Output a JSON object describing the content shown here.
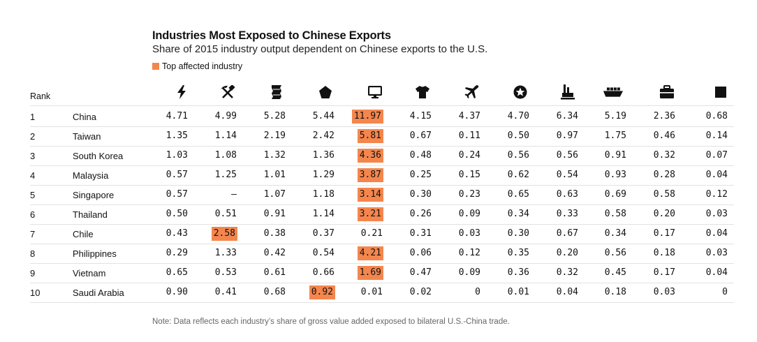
{
  "chart_data": {
    "type": "table",
    "title": "Industries Most Exposed to Chinese Exports",
    "subtitle": "Share of 2015 industry output dependent on Chinese exports to the U.S.",
    "legend": {
      "label": "Top affected industry",
      "color": "#F4864D"
    },
    "rank_header": "Rank",
    "note": "Note: Data reflects each industry’s share of gross value added exposed to bilateral U.S.-China trade.",
    "columns": [
      {
        "icon": "lightning-bolt-icon"
      },
      {
        "icon": "hammer-pickaxe-icon"
      },
      {
        "icon": "paper-roll-icon"
      },
      {
        "icon": "pentagon-icon"
      },
      {
        "icon": "computer-monitor-icon"
      },
      {
        "icon": "t-shirt-icon"
      },
      {
        "icon": "airplane-icon"
      },
      {
        "icon": "star-circle-icon"
      },
      {
        "icon": "factory-icon"
      },
      {
        "icon": "ship-icon"
      },
      {
        "icon": "briefcase-icon"
      },
      {
        "icon": "square-icon"
      }
    ],
    "rows": [
      {
        "rank": "1",
        "country": "China",
        "values": [
          "4.71",
          "4.99",
          "5.28",
          "5.44",
          "11.97",
          "4.15",
          "4.37",
          "4.70",
          "6.34",
          "5.19",
          "2.36",
          "0.68"
        ],
        "highlight": 4
      },
      {
        "rank": "2",
        "country": "Taiwan",
        "values": [
          "1.35",
          "1.14",
          "2.19",
          "2.42",
          "5.81",
          "0.67",
          "0.11",
          "0.50",
          "0.97",
          "1.75",
          "0.46",
          "0.14"
        ],
        "highlight": 4
      },
      {
        "rank": "3",
        "country": "South Korea",
        "values": [
          "1.03",
          "1.08",
          "1.32",
          "1.36",
          "4.36",
          "0.48",
          "0.24",
          "0.56",
          "0.56",
          "0.91",
          "0.32",
          "0.07"
        ],
        "highlight": 4
      },
      {
        "rank": "4",
        "country": "Malaysia",
        "values": [
          "0.57",
          "1.25",
          "1.01",
          "1.29",
          "3.87",
          "0.25",
          "0.15",
          "0.62",
          "0.54",
          "0.93",
          "0.28",
          "0.04"
        ],
        "highlight": 4
      },
      {
        "rank": "5",
        "country": "Singapore",
        "values": [
          "0.57",
          "–",
          "1.07",
          "1.18",
          "3.14",
          "0.30",
          "0.23",
          "0.65",
          "0.63",
          "0.69",
          "0.58",
          "0.12"
        ],
        "highlight": 4
      },
      {
        "rank": "6",
        "country": "Thailand",
        "values": [
          "0.50",
          "0.51",
          "0.91",
          "1.14",
          "3.21",
          "0.26",
          "0.09",
          "0.34",
          "0.33",
          "0.58",
          "0.20",
          "0.03"
        ],
        "highlight": 4
      },
      {
        "rank": "7",
        "country": "Chile",
        "values": [
          "0.43",
          "2.58",
          "0.38",
          "0.37",
          "0.21",
          "0.31",
          "0.03",
          "0.30",
          "0.67",
          "0.34",
          "0.17",
          "0.04"
        ],
        "highlight": 1
      },
      {
        "rank": "8",
        "country": "Philippines",
        "values": [
          "0.29",
          "1.33",
          "0.42",
          "0.54",
          "4.21",
          "0.06",
          "0.12",
          "0.35",
          "0.20",
          "0.56",
          "0.18",
          "0.03"
        ],
        "highlight": 4
      },
      {
        "rank": "9",
        "country": "Vietnam",
        "values": [
          "0.65",
          "0.53",
          "0.61",
          "0.66",
          "1.69",
          "0.47",
          "0.09",
          "0.36",
          "0.32",
          "0.45",
          "0.17",
          "0.04"
        ],
        "highlight": 4
      },
      {
        "rank": "10",
        "country": "Saudi Arabia",
        "values": [
          "0.90",
          "0.41",
          "0.68",
          "0.92",
          "0.01",
          "0.02",
          "0",
          "0.01",
          "0.04",
          "0.18",
          "0.03",
          "0"
        ],
        "highlight": 3
      }
    ]
  }
}
